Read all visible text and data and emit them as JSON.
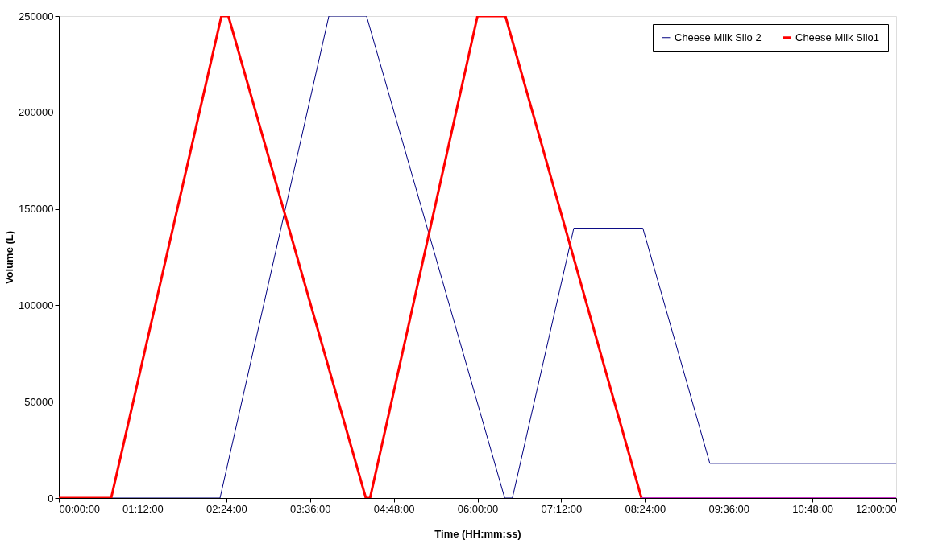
{
  "chart_data": {
    "type": "line",
    "xlabel": "Time (HH:mm:ss)",
    "ylabel": "Volume (L)",
    "xlim": [
      0,
      12
    ],
    "ylim": [
      0,
      250000
    ],
    "xticks": [
      {
        "value": 0,
        "label": "00:00:00"
      },
      {
        "value": 1.2,
        "label": "01:12:00"
      },
      {
        "value": 2.4,
        "label": "02:24:00"
      },
      {
        "value": 3.6,
        "label": "03:36:00"
      },
      {
        "value": 4.8,
        "label": "04:48:00"
      },
      {
        "value": 6,
        "label": "06:00:00"
      },
      {
        "value": 7.2,
        "label": "07:12:00"
      },
      {
        "value": 8.4,
        "label": "08:24:00"
      },
      {
        "value": 9.6,
        "label": "09:36:00"
      },
      {
        "value": 10.8,
        "label": "10:48:00"
      },
      {
        "value": 12,
        "label": "12:00:00"
      }
    ],
    "yticks": [
      0,
      50000,
      100000,
      150000,
      200000,
      250000
    ],
    "grid": false,
    "legend": "top right",
    "marker": "none",
    "line_style": "solid",
    "series": [
      {
        "name": "Cheese Milk Silo 2",
        "color": "#000080",
        "x": [
          0,
          2.31,
          3.87,
          4.41,
          6.39,
          6.5,
          7.38,
          8.37,
          9.33,
          12
        ],
        "values": [
          0,
          0,
          250000,
          250000,
          0,
          0,
          140000,
          140000,
          18000,
          18000
        ]
      },
      {
        "name": "Cheese Milk Silo1",
        "color": "#ff0000",
        "x": [
          0,
          0.75,
          2.33,
          2.43,
          4.4,
          4.46,
          6.0,
          6.4,
          8.35
        ],
        "values": [
          0,
          0,
          250000,
          250000,
          0,
          0,
          250000,
          250000,
          0
        ]
      },
      {
        "color": "#cc33cc",
        "x": [
          8.35,
          12
        ],
        "values": [
          0,
          0
        ]
      }
    ]
  }
}
